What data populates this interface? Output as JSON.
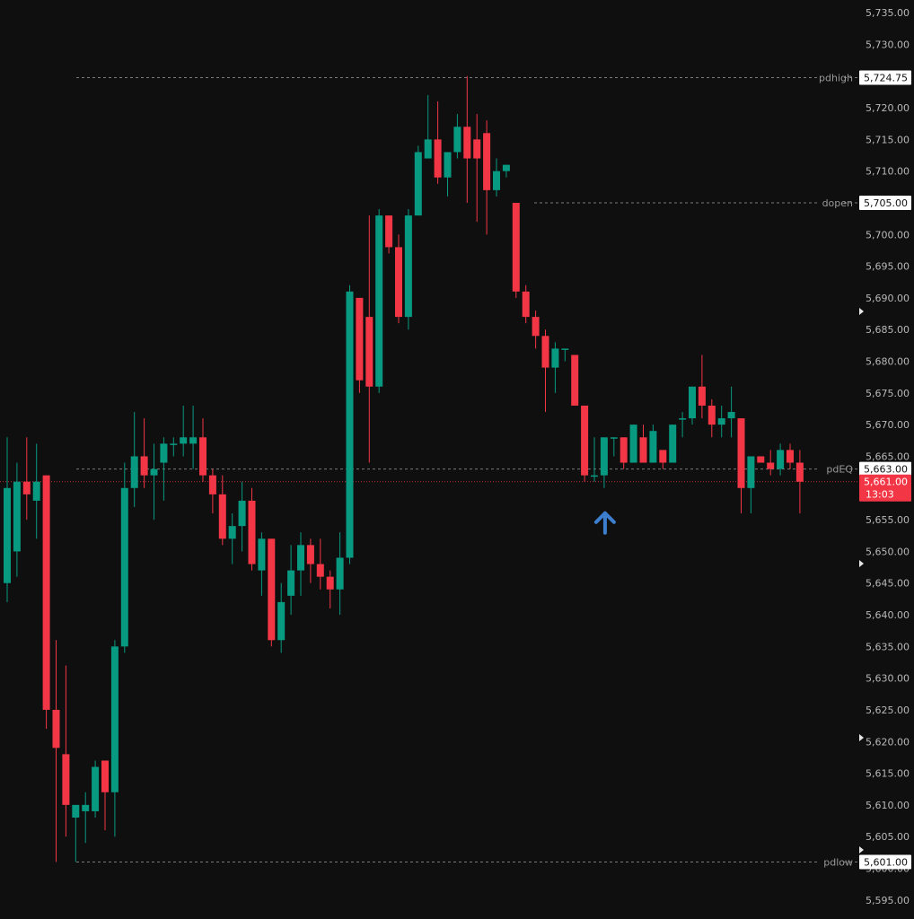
{
  "chart_data": {
    "type": "candlestick",
    "colors": {
      "background": "#0f0f0f",
      "up": "#089981",
      "down": "#f23645",
      "level_line": "#7a7a7a",
      "level_label_bg": "#ffffff",
      "last_price_bg": "#f23645",
      "arrow": "#3d7fcf"
    },
    "ylim": [
      5592,
      5737
    ],
    "y_ticks": [
      "5,735.00",
      "5,730.00",
      "5,725.00",
      "5,720.00",
      "5,715.00",
      "5,710.00",
      "5,705.00",
      "5,700.00",
      "5,695.00",
      "5,690.00",
      "5,685.00",
      "5,680.00",
      "5,675.00",
      "5,670.00",
      "5,665.00",
      "5,660.00",
      "5,655.00",
      "5,650.00",
      "5,645.00",
      "5,640.00",
      "5,635.00",
      "5,630.00",
      "5,625.00",
      "5,620.00",
      "5,615.00",
      "5,610.00",
      "5,605.00",
      "5,600.00",
      "5,595.00"
    ],
    "levels": [
      {
        "name": "pdhigh",
        "value": 5724.75,
        "price_label": "5,724.75"
      },
      {
        "name": "dopen",
        "value": 5705.0,
        "price_label": "5,705.00"
      },
      {
        "name": "pdEQ",
        "value": 5663.0,
        "price_label": "5,663.00"
      },
      {
        "name": "pdlow",
        "value": 5601.0,
        "price_label": "5,601.00"
      }
    ],
    "last_price": {
      "value": 5661.0,
      "label": "5,661.00",
      "countdown": "13:03"
    },
    "annotation": {
      "type": "up-arrow",
      "candle_index": 61
    },
    "candles": [
      {
        "o": 5645,
        "h": 5668,
        "l": 5642,
        "c": 5660
      },
      {
        "o": 5650,
        "h": 5664,
        "l": 5646,
        "c": 5661
      },
      {
        "o": 5661,
        "h": 5668,
        "l": 5655,
        "c": 5659
      },
      {
        "o": 5658,
        "h": 5667,
        "l": 5652,
        "c": 5661
      },
      {
        "o": 5662,
        "h": 5662,
        "l": 5622,
        "c": 5625
      },
      {
        "o": 5625,
        "h": 5636,
        "l": 5601,
        "c": 5619
      },
      {
        "o": 5618,
        "h": 5632,
        "l": 5605,
        "c": 5610
      },
      {
        "o": 5608,
        "h": 5610,
        "l": 5601,
        "c": 5610
      },
      {
        "o": 5609,
        "h": 5612,
        "l": 5604,
        "c": 5610
      },
      {
        "o": 5609,
        "h": 5617,
        "l": 5608,
        "c": 5616
      },
      {
        "o": 5617,
        "h": 5617,
        "l": 5606,
        "c": 5612
      },
      {
        "o": 5612,
        "h": 5636,
        "l": 5605,
        "c": 5635
      },
      {
        "o": 5635,
        "h": 5664,
        "l": 5634,
        "c": 5660
      },
      {
        "o": 5660,
        "h": 5672,
        "l": 5657,
        "c": 5665
      },
      {
        "o": 5665,
        "h": 5671,
        "l": 5660,
        "c": 5662
      },
      {
        "o": 5662,
        "h": 5667,
        "l": 5655,
        "c": 5663
      },
      {
        "o": 5664,
        "h": 5668,
        "l": 5658,
        "c": 5667
      },
      {
        "o": 5667,
        "h": 5668,
        "l": 5665,
        "c": 5667
      },
      {
        "o": 5667,
        "h": 5673,
        "l": 5665,
        "c": 5668
      },
      {
        "o": 5667,
        "h": 5673,
        "l": 5663,
        "c": 5668
      },
      {
        "o": 5668,
        "h": 5671,
        "l": 5661,
        "c": 5662
      },
      {
        "o": 5662,
        "h": 5663,
        "l": 5656,
        "c": 5659
      },
      {
        "o": 5659,
        "h": 5662,
        "l": 5651,
        "c": 5652
      },
      {
        "o": 5652,
        "h": 5656,
        "l": 5648,
        "c": 5654
      },
      {
        "o": 5654,
        "h": 5661,
        "l": 5650,
        "c": 5658
      },
      {
        "o": 5658,
        "h": 5660,
        "l": 5647,
        "c": 5648
      },
      {
        "o": 5647,
        "h": 5653,
        "l": 5643,
        "c": 5652
      },
      {
        "o": 5652,
        "h": 5652,
        "l": 5635,
        "c": 5636
      },
      {
        "o": 5636,
        "h": 5645,
        "l": 5634,
        "c": 5642
      },
      {
        "o": 5643,
        "h": 5651,
        "l": 5640,
        "c": 5647
      },
      {
        "o": 5647,
        "h": 5653,
        "l": 5643,
        "c": 5651
      },
      {
        "o": 5651,
        "h": 5652,
        "l": 5645,
        "c": 5648
      },
      {
        "o": 5648,
        "h": 5652,
        "l": 5644,
        "c": 5646
      },
      {
        "o": 5646,
        "h": 5647,
        "l": 5641,
        "c": 5644
      },
      {
        "o": 5644,
        "h": 5653,
        "l": 5640,
        "c": 5649
      },
      {
        "o": 5649,
        "h": 5692,
        "l": 5648,
        "c": 5691
      },
      {
        "o": 5690,
        "h": 5690,
        "l": 5675,
        "c": 5677
      },
      {
        "o": 5687,
        "h": 5703,
        "l": 5664,
        "c": 5676
      },
      {
        "o": 5676,
        "h": 5704,
        "l": 5675,
        "c": 5703
      },
      {
        "o": 5703,
        "h": 5703,
        "l": 5697,
        "c": 5698
      },
      {
        "o": 5698,
        "h": 5700,
        "l": 5686,
        "c": 5687
      },
      {
        "o": 5687,
        "h": 5704,
        "l": 5685,
        "c": 5703
      },
      {
        "o": 5703,
        "h": 5714,
        "l": 5703,
        "c": 5713
      },
      {
        "o": 5712,
        "h": 5722,
        "l": 5712,
        "c": 5715
      },
      {
        "o": 5715,
        "h": 5721,
        "l": 5708,
        "c": 5709
      },
      {
        "o": 5709,
        "h": 5713,
        "l": 5706,
        "c": 5713
      },
      {
        "o": 5713,
        "h": 5719,
        "l": 5712,
        "c": 5717
      },
      {
        "o": 5717,
        "h": 5725,
        "l": 5705,
        "c": 5712
      },
      {
        "o": 5715,
        "h": 5719,
        "l": 5702,
        "c": 5712
      },
      {
        "o": 5716,
        "h": 5718,
        "l": 5700,
        "c": 5707
      },
      {
        "o": 5707,
        "h": 5712,
        "l": 5706,
        "c": 5710
      },
      {
        "o": 5710,
        "h": 5711,
        "l": 5709,
        "c": 5711
      },
      {
        "o": 5705,
        "h": 5705,
        "l": 5690,
        "c": 5691
      },
      {
        "o": 5691,
        "h": 5692,
        "l": 5686,
        "c": 5687
      },
      {
        "o": 5687,
        "h": 5688,
        "l": 5682,
        "c": 5684
      },
      {
        "o": 5684,
        "h": 5685,
        "l": 5672,
        "c": 5679
      },
      {
        "o": 5679,
        "h": 5683,
        "l": 5675,
        "c": 5682
      },
      {
        "o": 5682,
        "h": 5682,
        "l": 5680,
        "c": 5682
      },
      {
        "o": 5681,
        "h": 5681,
        "l": 5673,
        "c": 5673
      },
      {
        "o": 5673,
        "h": 5673,
        "l": 5661,
        "c": 5662
      },
      {
        "o": 5662,
        "h": 5668,
        "l": 5661,
        "c": 5662
      },
      {
        "o": 5662,
        "h": 5668,
        "l": 5660,
        "c": 5668
      },
      {
        "o": 5668,
        "h": 5668,
        "l": 5665,
        "c": 5668
      },
      {
        "o": 5668,
        "h": 5668,
        "l": 5663,
        "c": 5664
      },
      {
        "o": 5664,
        "h": 5670,
        "l": 5664,
        "c": 5670
      },
      {
        "o": 5668,
        "h": 5670,
        "l": 5664,
        "c": 5664
      },
      {
        "o": 5664,
        "h": 5670,
        "l": 5664,
        "c": 5669
      },
      {
        "o": 5666,
        "h": 5666,
        "l": 5663,
        "c": 5664
      },
      {
        "o": 5664,
        "h": 5670,
        "l": 5664,
        "c": 5670
      },
      {
        "o": 5671,
        "h": 5672,
        "l": 5668,
        "c": 5671
      },
      {
        "o": 5671,
        "h": 5676,
        "l": 5670,
        "c": 5676
      },
      {
        "o": 5676,
        "h": 5681,
        "l": 5671,
        "c": 5673
      },
      {
        "o": 5673,
        "h": 5674,
        "l": 5668,
        "c": 5670
      },
      {
        "o": 5670,
        "h": 5673,
        "l": 5668,
        "c": 5671
      },
      {
        "o": 5671,
        "h": 5676,
        "l": 5668,
        "c": 5672
      },
      {
        "o": 5671,
        "h": 5671,
        "l": 5656,
        "c": 5660
      },
      {
        "o": 5660,
        "h": 5665,
        "l": 5656,
        "c": 5665
      },
      {
        "o": 5665,
        "h": 5665,
        "l": 5664,
        "c": 5664
      },
      {
        "o": 5664,
        "h": 5666,
        "l": 5662,
        "c": 5663
      },
      {
        "o": 5663,
        "h": 5667,
        "l": 5662,
        "c": 5666
      },
      {
        "o": 5666,
        "h": 5667,
        "l": 5663,
        "c": 5664
      },
      {
        "o": 5664,
        "h": 5666,
        "l": 5656,
        "c": 5661
      }
    ]
  }
}
